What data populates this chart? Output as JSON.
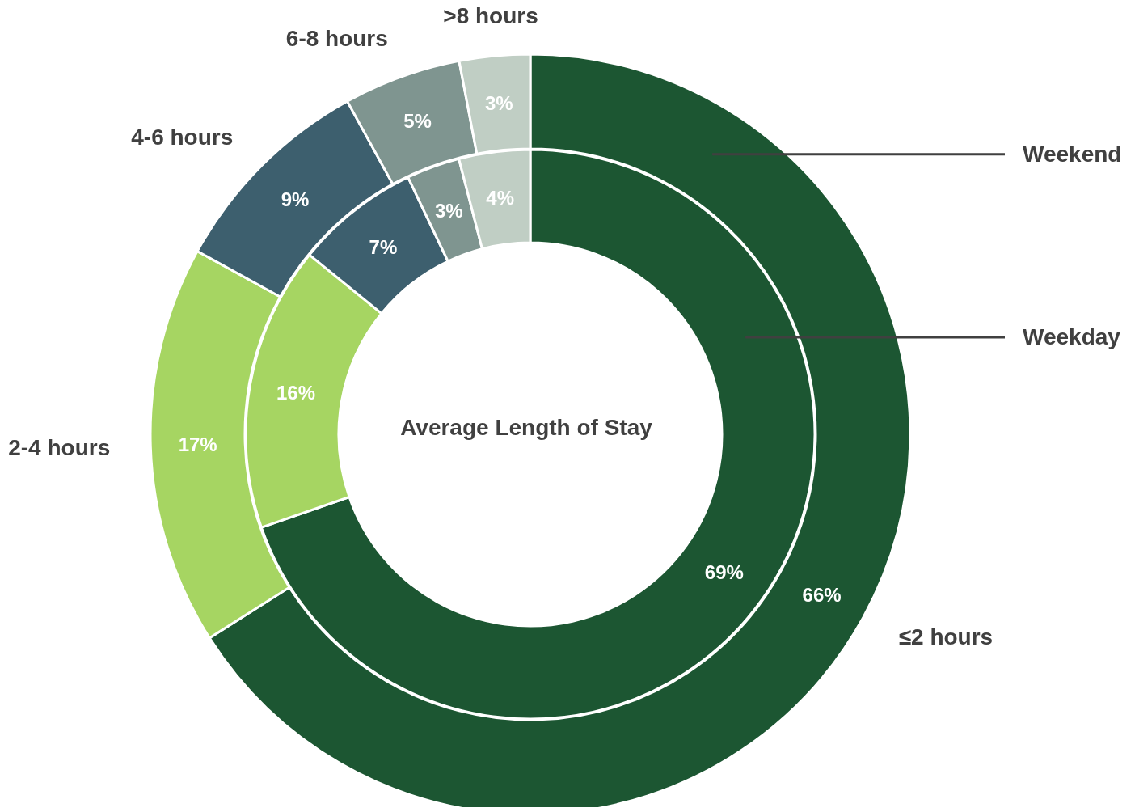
{
  "chart_data": {
    "type": "donut",
    "title": "Average Length of Stay",
    "categories": [
      "≤2 hours",
      "2-4 hours",
      "4-6 hours",
      "6-8 hours",
      ">8 hours"
    ],
    "series": [
      {
        "name": "Weekend",
        "values": [
          66,
          17,
          9,
          5,
          3
        ],
        "value_labels": [
          "66%",
          "17%",
          "9%",
          "5%",
          "3%"
        ],
        "colors": [
          "#1c5632",
          "#a6d562",
          "#3d5f6e",
          "#7f9590",
          "#c0cec4"
        ]
      },
      {
        "name": "Weekday",
        "values": [
          69,
          16,
          7,
          3,
          4
        ],
        "value_labels": [
          "69%",
          "16%",
          "7%",
          "3%",
          "4%"
        ],
        "colors": [
          "#1c5632",
          "#a6d562",
          "#3d5f6e",
          "#7f9590",
          "#c0cec4"
        ]
      }
    ]
  }
}
